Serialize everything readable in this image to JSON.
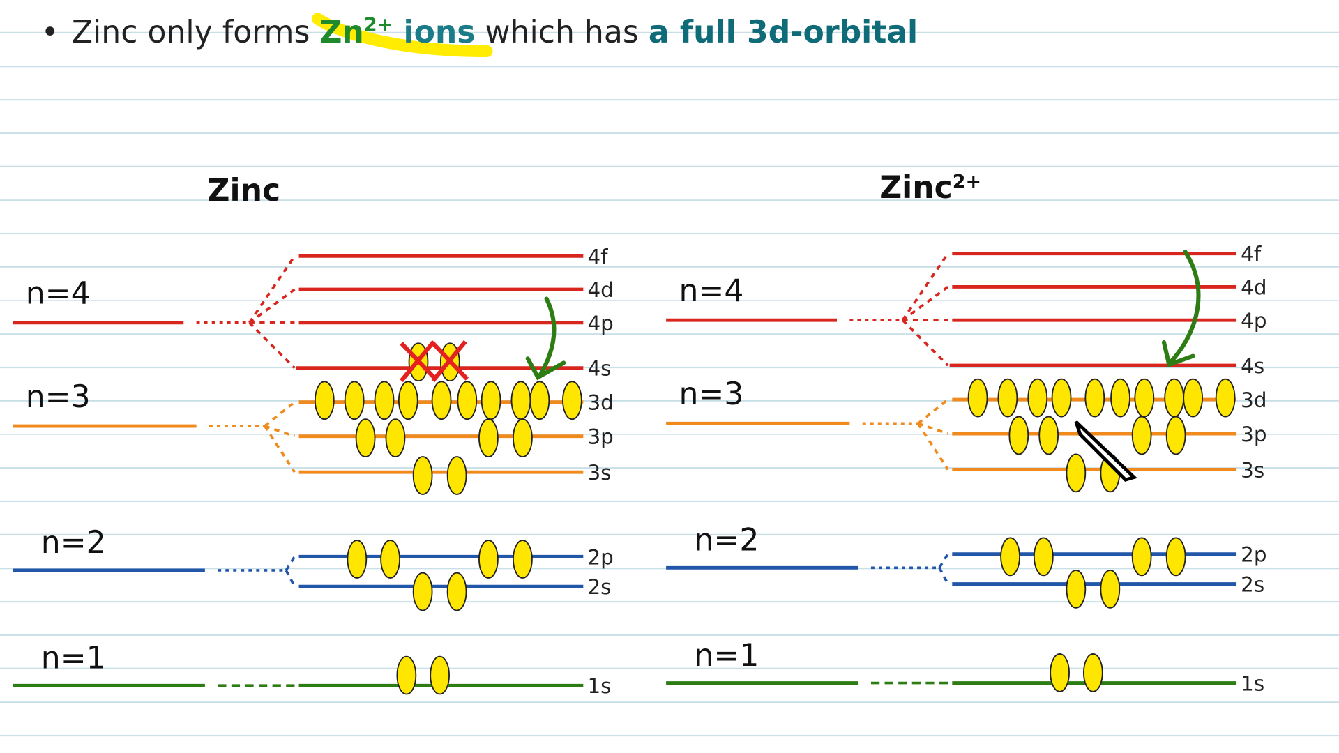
{
  "header": {
    "bullet": "•",
    "parts": [
      "Zinc only forms ",
      "Zn",
      "2+",
      " ions",
      " which has ",
      "a full 3d-orbital"
    ]
  },
  "panels": [
    {
      "title": "Zinc",
      "title_sup": null,
      "shells": [
        "n=4",
        "n=3",
        "n=2",
        "n=1"
      ],
      "subshells": [
        "4f",
        "4d",
        "4p",
        "4s",
        "3d",
        "3p",
        "3s",
        "2p",
        "2s",
        "1s"
      ]
    },
    {
      "title": "Zinc",
      "title_sup": "2+",
      "shells": [
        "n=4",
        "n=3",
        "n=2",
        "n=1"
      ],
      "subshells": [
        "4f",
        "4d",
        "4p",
        "4s",
        "3d",
        "3p",
        "3s",
        "2p",
        "2s",
        "1s"
      ]
    }
  ]
}
